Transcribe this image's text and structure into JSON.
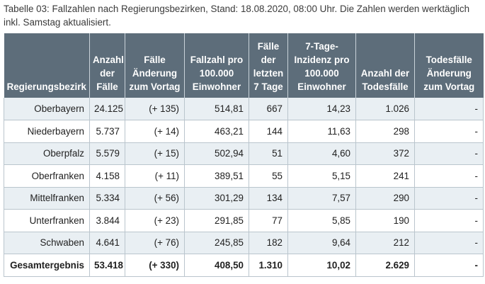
{
  "caption": "Tabelle 03: Fallzahlen nach Regierungsbezirken, Stand: 18.08.2020, 08:00 Uhr. Die Zahlen werden werktäglich inkl. Samstag aktualisiert.",
  "table": {
    "headers": [
      "Regierungsbezirk",
      "Anzahl der Fälle",
      "Fälle Änderung zum Vortag",
      "Fallzahl pro 100.000 Einwohner",
      "Fälle der letzten 7 Tage",
      "7-Tage-Inzidenz pro 100.000 Einwohner",
      "Anzahl der Todesfälle",
      "Todesfälle Änderung zum Vortag"
    ],
    "rows": [
      [
        "Oberbayern",
        "24.125",
        "(+ 135)",
        "514,81",
        "667",
        "14,23",
        "1.026",
        "-"
      ],
      [
        "Niederbayern",
        "5.737",
        "(+ 14)",
        "463,21",
        "144",
        "11,63",
        "298",
        "-"
      ],
      [
        "Oberpfalz",
        "5.579",
        "(+ 15)",
        "502,94",
        "51",
        "4,60",
        "372",
        "-"
      ],
      [
        "Oberfranken",
        "4.158",
        "(+ 11)",
        "389,51",
        "55",
        "5,15",
        "241",
        "-"
      ],
      [
        "Mittelfranken",
        "5.334",
        "(+ 56)",
        "301,29",
        "134",
        "7,57",
        "290",
        "-"
      ],
      [
        "Unterfranken",
        "3.844",
        "(+ 23)",
        "291,85",
        "77",
        "5,85",
        "190",
        "-"
      ],
      [
        "Schwaben",
        "4.641",
        "(+ 76)",
        "245,85",
        "182",
        "9,64",
        "212",
        "-"
      ]
    ],
    "total": [
      "Gesamtergebnis",
      "53.418",
      "(+ 330)",
      "408,50",
      "1.310",
      "10,02",
      "2.629",
      "-"
    ]
  }
}
